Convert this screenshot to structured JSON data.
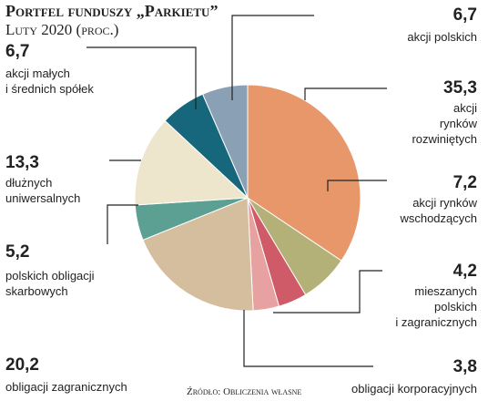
{
  "chart_data": {
    "type": "pie",
    "title": "Portfel funduszy „Parkietu”",
    "subtitle": "Luty 2020 (proc.)",
    "source": "Źródło: Obliczenia własne",
    "categories": [
      "akcji polskich",
      "akcji\nrynków\nrozwiniętych",
      "akcji rynków\nwschodzących",
      "mieszanych\npolskich\ni zagranicznych",
      "obligacji korporacyjnych",
      "obligacji zagranicznych",
      "polskich obligacji\nskarbowych",
      "dłużnych\nuniwersalnych",
      "akcji małych\ni średnich spółek"
    ],
    "values": [
      6.7,
      35.3,
      7.2,
      4.2,
      3.8,
      20.2,
      5.2,
      13.3,
      6.7
    ],
    "value_labels": [
      "6,7",
      "35,3",
      "7,2",
      "4,2",
      "3,8",
      "20,2",
      "5,2",
      "13,3",
      "6,7"
    ],
    "colors": [
      "#8aa0b4",
      "#e8976a",
      "#b3b177",
      "#cf5a68",
      "#e7a1a0",
      "#d5be9e",
      "#5c9f93",
      "#ede6cd",
      "#16677c"
    ]
  }
}
